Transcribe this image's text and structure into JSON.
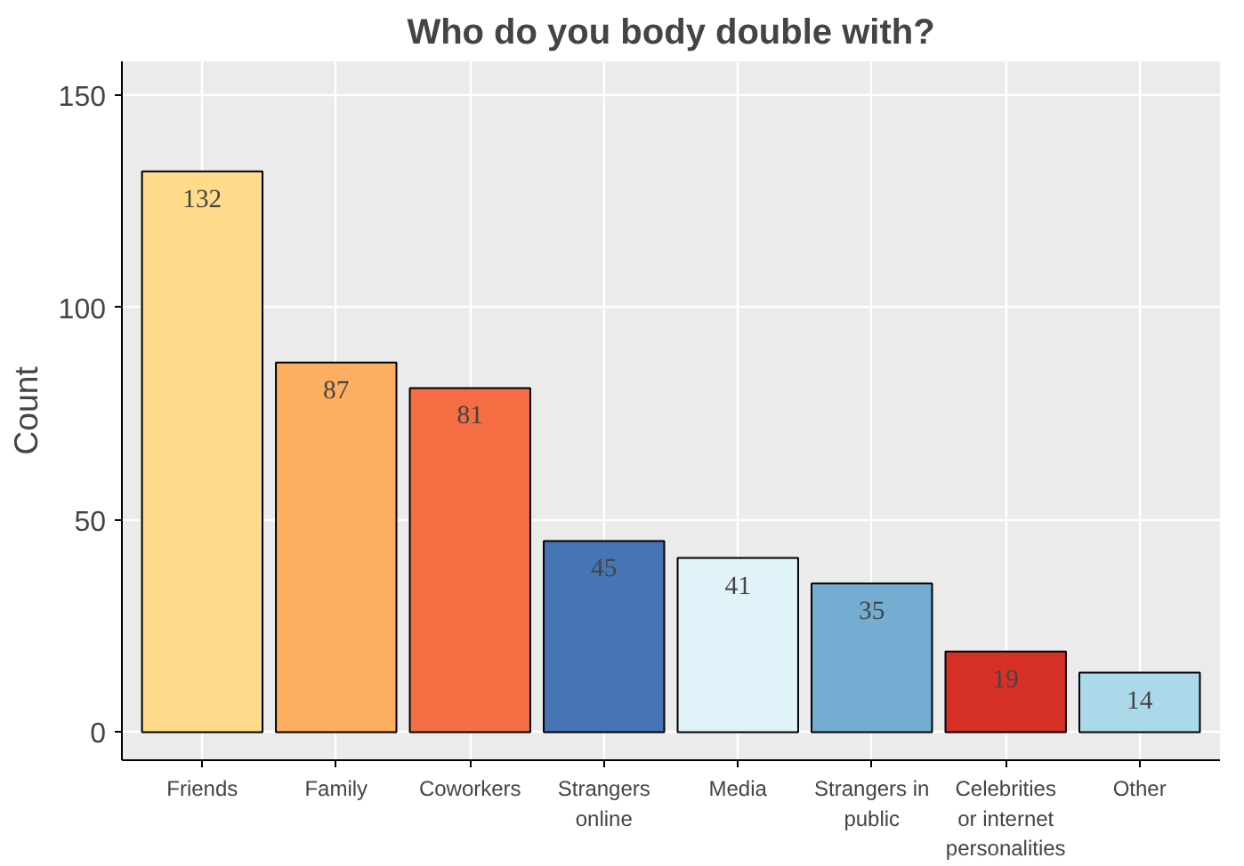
{
  "chart_data": {
    "type": "bar",
    "title": "Who do you body double with?",
    "ylabel": "Count",
    "categories": [
      "Friends",
      "Family",
      "Coworkers",
      "Strangers\nonline",
      "Media",
      "Strangers in\npublic",
      "Celebrities\nor internet\npersonalities",
      "Other"
    ],
    "values": [
      132,
      87,
      81,
      45,
      41,
      35,
      19,
      14
    ],
    "colors": [
      "#fedc8c",
      "#fdae61",
      "#f46d43",
      "#4575b4",
      "#e0f3f8",
      "#74add1",
      "#d73027",
      "#abd9e9"
    ],
    "ylim": [
      -6.6,
      157.9
    ],
    "yticks": [
      0,
      50,
      100,
      150
    ],
    "grid": true,
    "data_labels": true
  }
}
